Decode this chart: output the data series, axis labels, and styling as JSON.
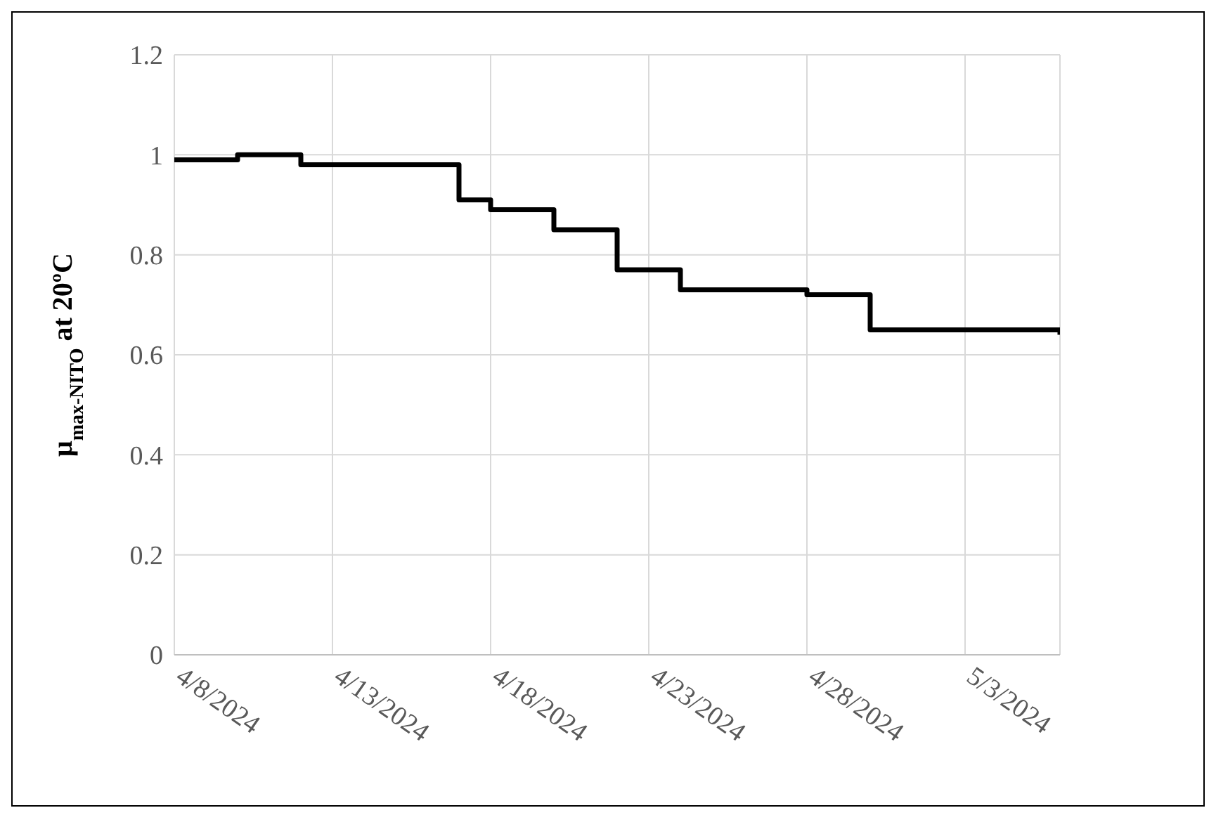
{
  "chart_data": {
    "type": "step",
    "ylabel": "μ$_{max-NITO}$ at 20ºC",
    "x": [
      "2024-04-08",
      "2024-04-10",
      "2024-04-12",
      "2024-04-17",
      "2024-04-18",
      "2024-04-20",
      "2024-04-22",
      "2024-04-24",
      "2024-04-28",
      "2024-04-30",
      "2024-05-06"
    ],
    "series": [
      {
        "color": "#000000",
        "values": [
          0.99,
          1.0,
          0.98,
          0.91,
          0.89,
          0.85,
          0.77,
          0.73,
          0.72,
          0.65,
          0.64
        ]
      }
    ],
    "xlim": [
      "2024-04-08",
      "2024-05-06"
    ],
    "xticks": [
      {
        "value": "2024-04-08",
        "label": "4/8/2024"
      },
      {
        "value": "2024-04-13",
        "label": "4/13/2024"
      },
      {
        "value": "2024-04-18",
        "label": "4/18/2024"
      },
      {
        "value": "2024-04-23",
        "label": "4/23/2024"
      },
      {
        "value": "2024-04-28",
        "label": "4/28/2024"
      },
      {
        "value": "2024-05-03",
        "label": "5/3/2024"
      }
    ],
    "ylim": [
      0,
      1.2
    ],
    "yticks": [
      0,
      0.2,
      0.4,
      0.6,
      0.8,
      1,
      1.2
    ],
    "grid": true,
    "legend": false,
    "marker": "none",
    "line_style": "solid"
  }
}
